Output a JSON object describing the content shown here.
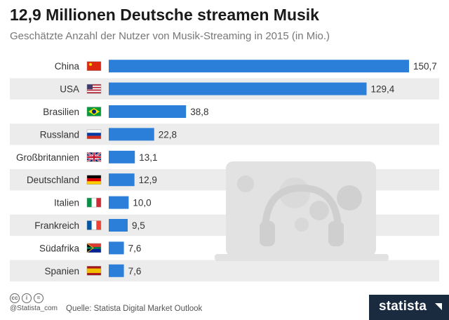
{
  "header": {
    "title": "12,9 Millionen Deutsche streamen Musik",
    "subtitle": "Geschätzte Anzahl der Nutzer von Musik-Streaming in 2015 (in  Mio.)"
  },
  "footer": {
    "handle": "@Statista_com",
    "source": "Quelle: Statista Digital Market Outlook",
    "logo_text": "statista"
  },
  "colors": {
    "bar": "#2b7fd9",
    "row_alt": "#ececec",
    "logo_bg": "#1a2a3f"
  },
  "chart_data": {
    "type": "bar",
    "orientation": "horizontal",
    "categories": [
      "China",
      "USA",
      "Brasilien",
      "Russland",
      "Großbritannien",
      "Deutschland",
      "Italien",
      "Frankreich",
      "Südafrika",
      "Spanien"
    ],
    "values": [
      150.7,
      129.4,
      38.8,
      22.8,
      13.1,
      12.9,
      10.0,
      9.5,
      7.6,
      7.6
    ],
    "value_labels": [
      "150,7",
      "129,4",
      "38,8",
      "22,8",
      "13,1",
      "12,9",
      "10,0",
      "9,5",
      "7,6",
      "7,6"
    ],
    "flags": [
      "china-flag",
      "usa-flag",
      "brazil-flag",
      "russia-flag",
      "uk-flag",
      "germany-flag",
      "italy-flag",
      "france-flag",
      "south-africa-flag",
      "spain-flag"
    ],
    "title": "12,9 Millionen Deutsche streamen Musik",
    "xlabel": "",
    "ylabel": "",
    "grid": false
  }
}
